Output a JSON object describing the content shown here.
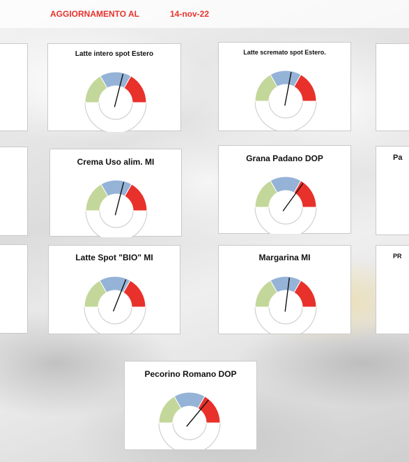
{
  "header": {
    "label": "AGGIORNAMENTO AL",
    "date": "14-nov-22"
  },
  "colors": {
    "green": "#c4d79b",
    "blue": "#95b3d7",
    "red": "#e8312a",
    "needle": "#111111",
    "title_red": "#e8312a"
  },
  "gauges": [
    {
      "id": "latte-intero-spot-estero",
      "title": "Latte intero spot Estero",
      "needle_fraction": 0.58
    },
    {
      "id": "latte-scremato-spot-estero",
      "title": "Latte scremato spot Estero.",
      "needle_fraction": 0.56
    },
    {
      "id": "crema-uso-alim-mi",
      "title": "Crema Uso alim. MI",
      "needle_fraction": 0.58
    },
    {
      "id": "grana-padano-dop",
      "title": "Grana Padano DOP",
      "needle_fraction": 0.7
    },
    {
      "id": "latte-spot-bio-mi",
      "title": "Latte Spot \"BIO\" MI",
      "needle_fraction": 0.62
    },
    {
      "id": "margarina-mi",
      "title": "Margarina MI",
      "needle_fraction": 0.54
    },
    {
      "id": "pecorino-romano-dop",
      "title": "Pecorino Romano DOP",
      "needle_fraction": 0.72
    }
  ],
  "edge_titles": {
    "row2_right": "Pa",
    "row3_right": "PR"
  }
}
